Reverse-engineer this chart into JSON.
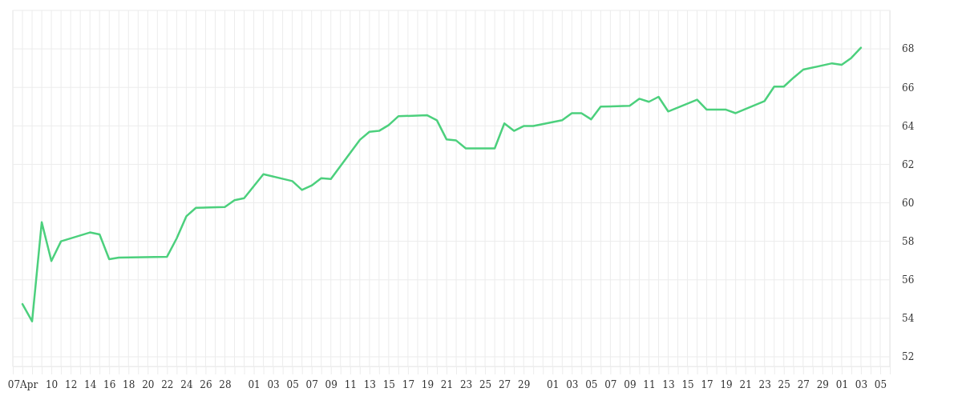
{
  "chart_data": {
    "type": "line",
    "grid": true,
    "marker": "none",
    "line_style": "solid",
    "x": [
      "--04-07",
      "--04-08",
      "--04-09",
      "--04-10",
      "--04-11",
      "--04-14",
      "--04-15",
      "--04-16",
      "--04-17",
      "--04-22",
      "--04-23",
      "--04-24",
      "--04-25",
      "--04-28",
      "--04-29",
      "--04-30",
      "--05-02",
      "--05-05",
      "--05-06",
      "--05-07",
      "--05-08",
      "--05-09",
      "--05-12",
      "--05-13",
      "--05-14",
      "--05-15",
      "--05-16",
      "--05-19",
      "--05-20",
      "--05-21",
      "--05-22",
      "--05-23",
      "--05-26",
      "--05-27",
      "--05-28",
      "--05-29",
      "--05-30",
      "--06-02",
      "--06-03",
      "--06-04",
      "--06-05",
      "--06-06",
      "--06-09",
      "--06-10",
      "--06-11",
      "--06-12",
      "--06-13",
      "--06-16",
      "--06-17",
      "--06-18",
      "--06-19",
      "--06-20",
      "--06-23",
      "--06-24",
      "--06-25",
      "--06-26",
      "--06-27",
      "--06-30",
      "--07-01",
      "--07-02",
      "--07-03"
    ],
    "series": [
      {
        "color": "#4cd07d",
        "values": [
          54.74,
          53.84,
          58.99,
          56.98,
          58.0,
          58.46,
          58.36,
          57.07,
          57.15,
          57.2,
          58.15,
          59.3,
          59.74,
          59.78,
          60.14,
          60.24,
          61.49,
          61.13,
          60.67,
          60.9,
          61.28,
          61.24,
          63.27,
          63.69,
          63.74,
          64.04,
          64.5,
          64.55,
          64.29,
          63.3,
          63.24,
          62.83,
          62.83,
          64.13,
          63.74,
          63.99,
          63.99,
          64.29,
          64.66,
          64.66,
          64.34,
          65.0,
          65.04,
          65.41,
          65.25,
          65.51,
          64.75,
          65.36,
          64.84,
          64.84,
          64.84,
          64.66,
          65.29,
          66.04,
          66.04,
          66.5,
          66.92,
          67.25,
          67.17,
          67.53,
          68.06
        ]
      }
    ],
    "ylim": [
      51.5,
      70
    ],
    "yticks": [
      52,
      54,
      56,
      58,
      60,
      62,
      64,
      66,
      68
    ],
    "xlim": [
      "--04-06",
      "--07-06"
    ],
    "xticks": [
      {
        "value": "--04-06",
        "label": null
      },
      {
        "value": "--04-07",
        "label": "07Apr"
      },
      {
        "value": "--04-08",
        "label": null
      },
      {
        "value": "--04-09",
        "label": null
      },
      {
        "value": "--04-10",
        "label": "10"
      },
      {
        "value": "--04-11",
        "label": null
      },
      {
        "value": "--04-12",
        "label": "12"
      },
      {
        "value": "--04-13",
        "label": null
      },
      {
        "value": "--04-14",
        "label": "14"
      },
      {
        "value": "--04-15",
        "label": null
      },
      {
        "value": "--04-16",
        "label": "16"
      },
      {
        "value": "--04-17",
        "label": null
      },
      {
        "value": "--04-18",
        "label": "18"
      },
      {
        "value": "--04-19",
        "label": null
      },
      {
        "value": "--04-20",
        "label": "20"
      },
      {
        "value": "--04-21",
        "label": null
      },
      {
        "value": "--04-22",
        "label": "22"
      },
      {
        "value": "--04-23",
        "label": null
      },
      {
        "value": "--04-24",
        "label": "24"
      },
      {
        "value": "--04-25",
        "label": null
      },
      {
        "value": "--04-26",
        "label": "26"
      },
      {
        "value": "--04-27",
        "label": null
      },
      {
        "value": "--04-28",
        "label": "28"
      },
      {
        "value": "--04-29",
        "label": null
      },
      {
        "value": "--04-30",
        "label": null
      },
      {
        "value": "--05-01",
        "label": "01"
      },
      {
        "value": "--05-02",
        "label": null
      },
      {
        "value": "--05-03",
        "label": "03"
      },
      {
        "value": "--05-04",
        "label": null
      },
      {
        "value": "--05-05",
        "label": "05"
      },
      {
        "value": "--05-06",
        "label": null
      },
      {
        "value": "--05-07",
        "label": "07"
      },
      {
        "value": "--05-08",
        "label": null
      },
      {
        "value": "--05-09",
        "label": "09"
      },
      {
        "value": "--05-10",
        "label": null
      },
      {
        "value": "--05-11",
        "label": "11"
      },
      {
        "value": "--05-12",
        "label": null
      },
      {
        "value": "--05-13",
        "label": "13"
      },
      {
        "value": "--05-14",
        "label": null
      },
      {
        "value": "--05-15",
        "label": "15"
      },
      {
        "value": "--05-16",
        "label": null
      },
      {
        "value": "--05-17",
        "label": "17"
      },
      {
        "value": "--05-18",
        "label": null
      },
      {
        "value": "--05-19",
        "label": "19"
      },
      {
        "value": "--05-20",
        "label": null
      },
      {
        "value": "--05-21",
        "label": "21"
      },
      {
        "value": "--05-22",
        "label": null
      },
      {
        "value": "--05-23",
        "label": "23"
      },
      {
        "value": "--05-24",
        "label": null
      },
      {
        "value": "--05-25",
        "label": "25"
      },
      {
        "value": "--05-26",
        "label": null
      },
      {
        "value": "--05-27",
        "label": "27"
      },
      {
        "value": "--05-28",
        "label": null
      },
      {
        "value": "--05-29",
        "label": "29"
      },
      {
        "value": "--05-30",
        "label": null
      },
      {
        "value": "--05-31",
        "label": null
      },
      {
        "value": "--06-01",
        "label": "01"
      },
      {
        "value": "--06-02",
        "label": null
      },
      {
        "value": "--06-03",
        "label": "03"
      },
      {
        "value": "--06-04",
        "label": null
      },
      {
        "value": "--06-05",
        "label": "05"
      },
      {
        "value": "--06-06",
        "label": null
      },
      {
        "value": "--06-07",
        "label": "07"
      },
      {
        "value": "--06-08",
        "label": null
      },
      {
        "value": "--06-09",
        "label": "09"
      },
      {
        "value": "--06-10",
        "label": null
      },
      {
        "value": "--06-11",
        "label": "11"
      },
      {
        "value": "--06-12",
        "label": null
      },
      {
        "value": "--06-13",
        "label": "13"
      },
      {
        "value": "--06-14",
        "label": null
      },
      {
        "value": "--06-15",
        "label": "15"
      },
      {
        "value": "--06-16",
        "label": null
      },
      {
        "value": "--06-17",
        "label": "17"
      },
      {
        "value": "--06-18",
        "label": null
      },
      {
        "value": "--06-19",
        "label": "19"
      },
      {
        "value": "--06-20",
        "label": null
      },
      {
        "value": "--06-21",
        "label": "21"
      },
      {
        "value": "--06-22",
        "label": null
      },
      {
        "value": "--06-23",
        "label": "23"
      },
      {
        "value": "--06-24",
        "label": null
      },
      {
        "value": "--06-25",
        "label": "25"
      },
      {
        "value": "--06-26",
        "label": null
      },
      {
        "value": "--06-27",
        "label": "27"
      },
      {
        "value": "--06-28",
        "label": null
      },
      {
        "value": "--06-29",
        "label": "29"
      },
      {
        "value": "--06-30",
        "label": null
      },
      {
        "value": "--07-01",
        "label": "01"
      },
      {
        "value": "--07-02",
        "label": null
      },
      {
        "value": "--07-03",
        "label": "03"
      },
      {
        "value": "--07-04",
        "label": null
      },
      {
        "value": "--07-05",
        "label": "05"
      },
      {
        "value": "--07-06",
        "label": null
      }
    ]
  }
}
